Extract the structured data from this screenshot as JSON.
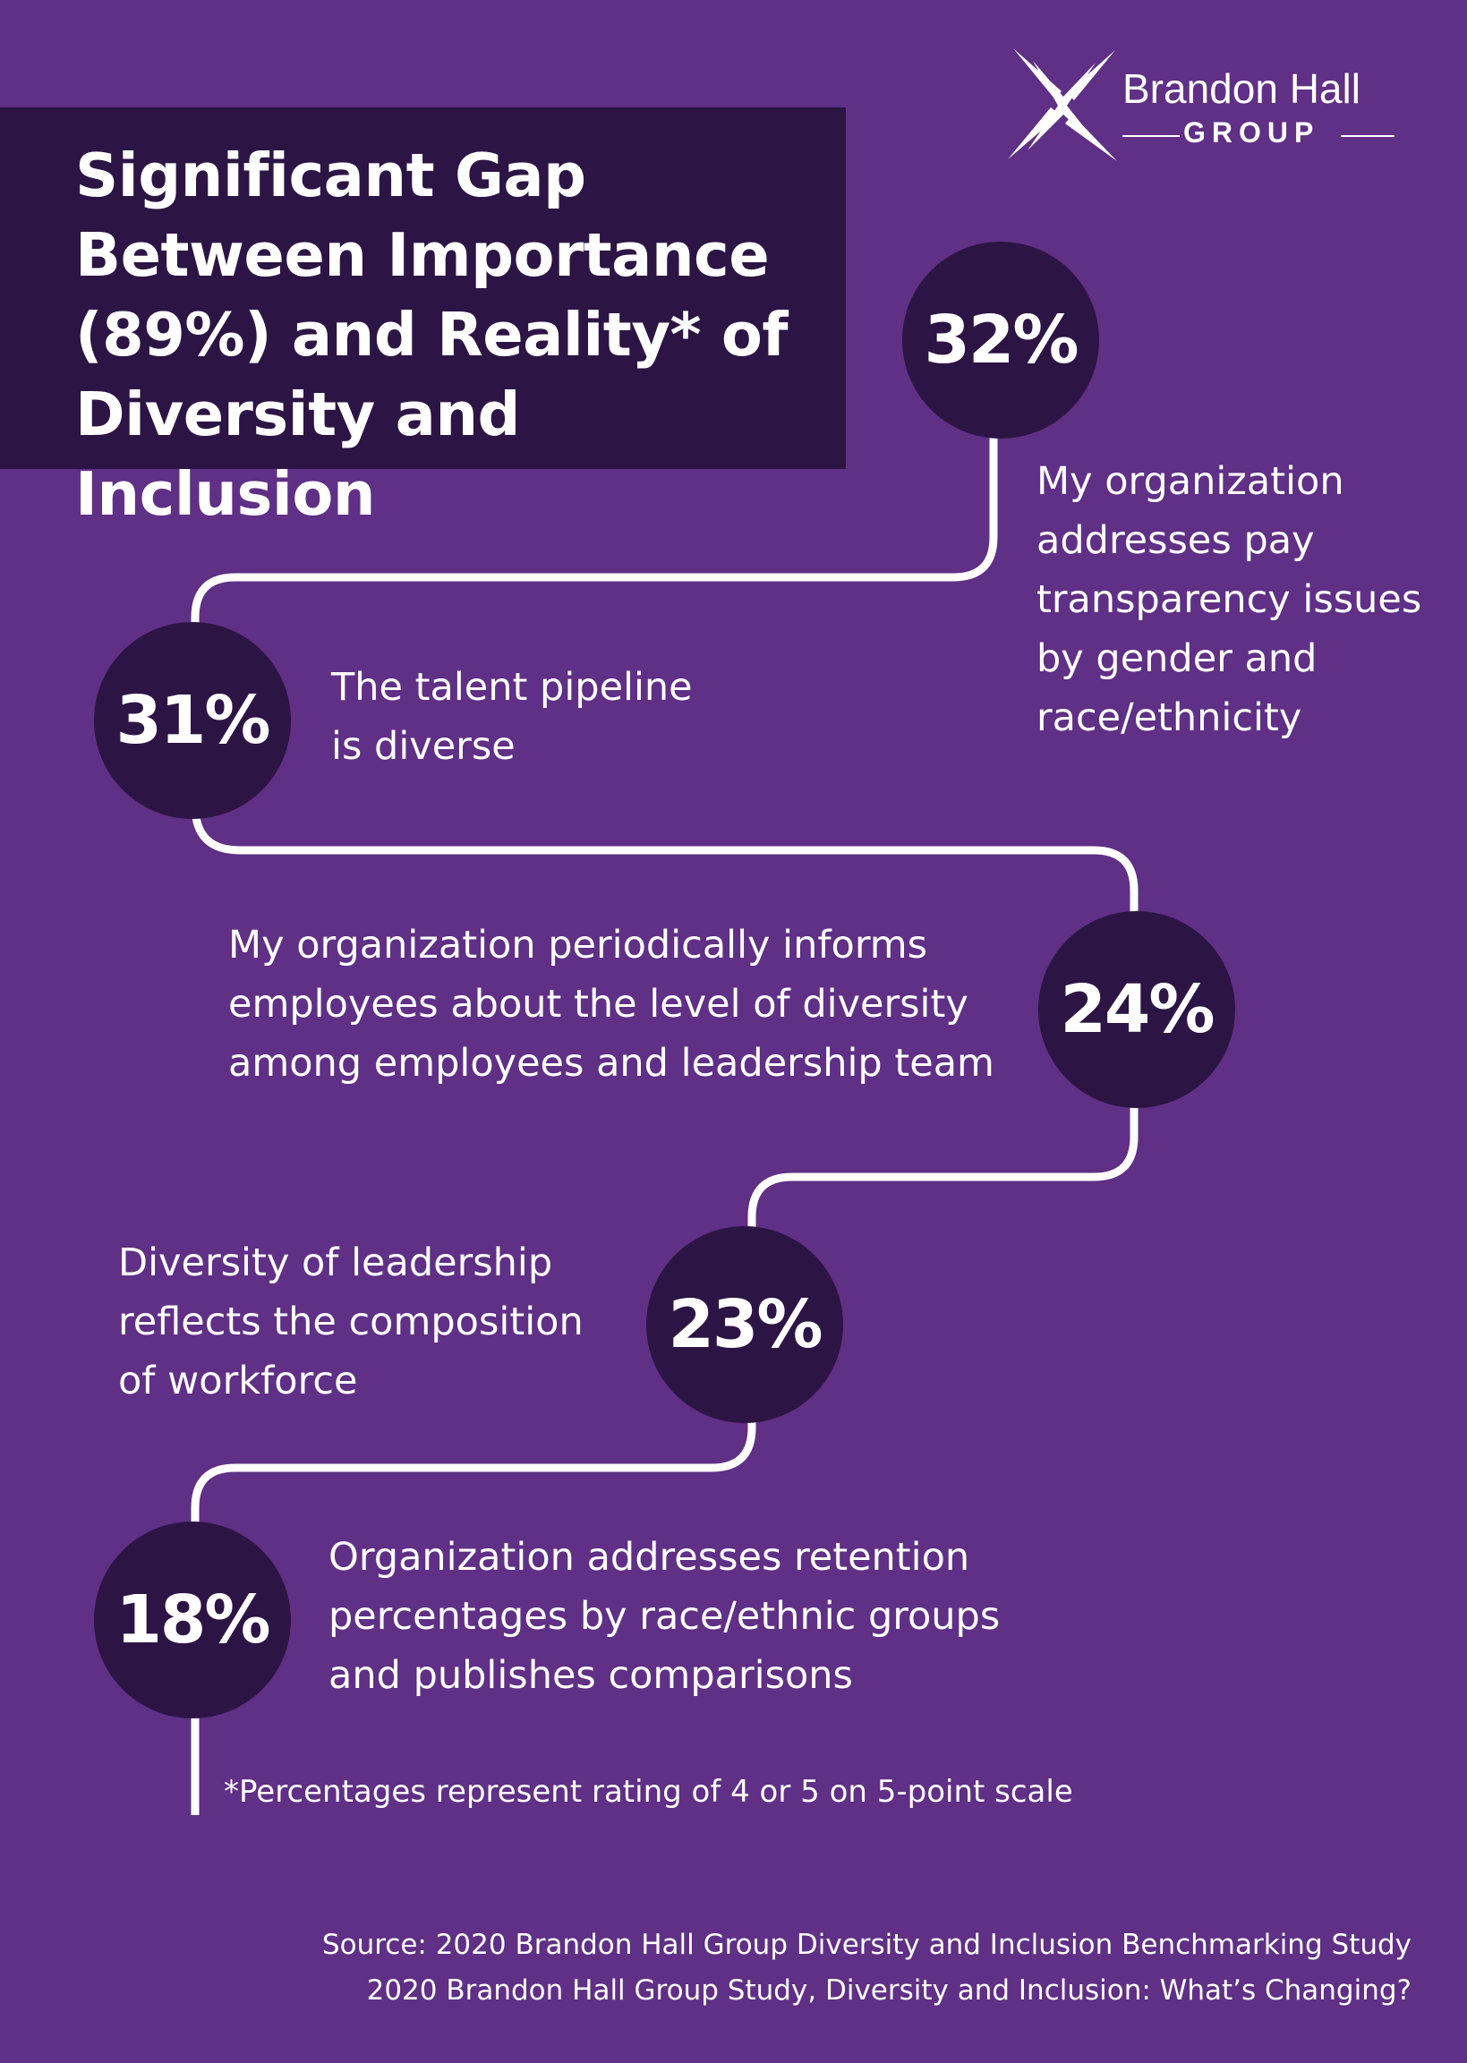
{
  "title": "Significant Gap Between Importance (89%) and Reality* of Diversity and Inclusion",
  "logo": {
    "line1": "Brandon Hall",
    "line2": "GROUP",
    "icon": "x-star-icon"
  },
  "stats": [
    {
      "value": "32%",
      "text": "My organization addresses pay transparency issues by gender and race/ethnicity"
    },
    {
      "value": "31%",
      "text": "The talent pipeline is diverse"
    },
    {
      "value": "24%",
      "text": "My organization periodically informs employees about the level of diversity among employees and leadership team"
    },
    {
      "value": "23%",
      "text": "Diversity of leadership reflects the composition of workforce"
    },
    {
      "value": "18%",
      "text": "Organization addresses retention percentages by race/ethnic groups and publishes comparisons"
    }
  ],
  "footnote": "*Percentages represent rating of 4 or 5 on 5-point scale",
  "source": {
    "line1": "Source: 2020 Brandon Hall Group Diversity and Inclusion Benchmarking Study",
    "line2": "2020 Brandon Hall Group Study, Diversity and Inclusion: What’s Changing?"
  },
  "colors": {
    "background": "#5f3085",
    "dark": "#2c1544",
    "text": "#ffffff"
  }
}
